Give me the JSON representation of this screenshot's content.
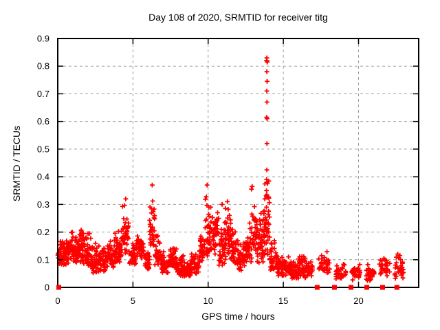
{
  "chart_data": {
    "type": "scatter",
    "title": "Day 108 of 2020, SRMTID for receiver titg",
    "xlabel": "GPS time / hours",
    "ylabel": "SRMTID / TECUs",
    "xlim": [
      0,
      24
    ],
    "ylim": [
      0,
      0.9
    ],
    "grid": true,
    "legend": "none",
    "marker": "plus",
    "seed": 7,
    "colors": {
      "marker": "#ff0000",
      "grid": "#9c9c9c",
      "border": "#000000",
      "background": "#ffffff"
    },
    "xticks": [
      {
        "v": 0,
        "label": "0"
      },
      {
        "v": 5,
        "label": "5"
      },
      {
        "v": 10,
        "label": "10"
      },
      {
        "v": 15,
        "label": "15"
      },
      {
        "v": 20,
        "label": "20"
      }
    ],
    "yticks": [
      {
        "v": 0.0,
        "label": "0"
      },
      {
        "v": 0.1,
        "label": "0.1"
      },
      {
        "v": 0.2,
        "label": "0.2"
      },
      {
        "v": 0.3,
        "label": "0.3"
      },
      {
        "v": 0.4,
        "label": "0.4"
      },
      {
        "v": 0.5,
        "label": "0.5"
      },
      {
        "v": 0.6,
        "label": "0.6"
      },
      {
        "v": 0.7,
        "label": "0.7"
      },
      {
        "v": 0.8,
        "label": "0.8"
      },
      {
        "v": 0.9,
        "label": "0.9"
      }
    ],
    "band_segments": [
      [
        0.0,
        0.3,
        28,
        0.08,
        0.17
      ],
      [
        0.3,
        0.8,
        48,
        0.08,
        0.18
      ],
      [
        0.8,
        1.3,
        52,
        0.09,
        0.21
      ],
      [
        1.3,
        1.8,
        50,
        0.08,
        0.22
      ],
      [
        1.8,
        2.3,
        46,
        0.07,
        0.2
      ],
      [
        2.3,
        2.8,
        40,
        0.05,
        0.17
      ],
      [
        2.8,
        3.3,
        40,
        0.05,
        0.16
      ],
      [
        3.3,
        3.8,
        44,
        0.07,
        0.19
      ],
      [
        3.8,
        4.3,
        46,
        0.09,
        0.22
      ],
      [
        4.3,
        4.75,
        42,
        0.11,
        0.32
      ],
      [
        4.75,
        5.2,
        30,
        0.08,
        0.18
      ],
      [
        5.2,
        5.8,
        42,
        0.1,
        0.21
      ],
      [
        5.8,
        6.1,
        24,
        0.06,
        0.15
      ],
      [
        6.1,
        6.45,
        32,
        0.14,
        0.37
      ],
      [
        6.45,
        6.9,
        30,
        0.08,
        0.2
      ],
      [
        6.9,
        7.4,
        40,
        0.05,
        0.13
      ],
      [
        7.4,
        7.9,
        44,
        0.06,
        0.16
      ],
      [
        7.9,
        8.4,
        46,
        0.04,
        0.12
      ],
      [
        8.4,
        8.9,
        44,
        0.04,
        0.11
      ],
      [
        8.9,
        9.4,
        40,
        0.05,
        0.14
      ],
      [
        9.4,
        9.8,
        36,
        0.08,
        0.22
      ],
      [
        9.8,
        10.15,
        36,
        0.1,
        0.36
      ],
      [
        10.15,
        10.7,
        46,
        0.12,
        0.32
      ],
      [
        10.7,
        11.1,
        38,
        0.08,
        0.24
      ],
      [
        11.1,
        11.5,
        40,
        0.1,
        0.31
      ],
      [
        11.5,
        12.0,
        44,
        0.08,
        0.22
      ],
      [
        12.0,
        12.5,
        40,
        0.06,
        0.18
      ],
      [
        12.5,
        12.9,
        34,
        0.08,
        0.25
      ],
      [
        12.9,
        13.25,
        34,
        0.1,
        0.37
      ],
      [
        13.25,
        13.7,
        40,
        0.08,
        0.3
      ],
      [
        13.7,
        14.1,
        46,
        0.1,
        0.4
      ],
      [
        14.1,
        14.6,
        44,
        0.06,
        0.18
      ],
      [
        14.6,
        15.1,
        44,
        0.04,
        0.13
      ],
      [
        15.1,
        15.55,
        36,
        0.04,
        0.12
      ],
      [
        15.55,
        16.0,
        38,
        0.03,
        0.1
      ],
      [
        16.0,
        16.6,
        44,
        0.03,
        0.14
      ],
      [
        16.6,
        16.95,
        22,
        0.04,
        0.1
      ],
      [
        17.35,
        18.1,
        34,
        0.05,
        0.14
      ],
      [
        18.5,
        19.2,
        30,
        0.03,
        0.09
      ],
      [
        19.55,
        20.1,
        30,
        0.025,
        0.09
      ],
      [
        20.5,
        21.1,
        30,
        0.02,
        0.1
      ],
      [
        21.4,
        22.1,
        30,
        0.04,
        0.12
      ],
      [
        22.4,
        23.0,
        30,
        0.03,
        0.13
      ]
    ],
    "spike_points": [
      [
        13.88,
        0.82
      ],
      [
        13.91,
        0.82
      ],
      [
        13.93,
        0.815
      ],
      [
        13.9,
        0.83
      ],
      [
        13.9,
        0.78
      ],
      [
        13.92,
        0.745
      ],
      [
        13.9,
        0.71
      ],
      [
        13.91,
        0.67
      ],
      [
        13.89,
        0.615
      ],
      [
        13.92,
        0.61
      ],
      [
        13.91,
        0.52
      ],
      [
        13.9,
        0.425
      ],
      [
        13.89,
        0.39
      ],
      [
        13.92,
        0.38
      ],
      [
        13.94,
        0.375
      ],
      [
        13.88,
        0.35
      ],
      [
        13.91,
        0.335
      ],
      [
        13.93,
        0.325
      ],
      [
        12.93,
        0.365
      ],
      [
        12.88,
        0.355
      ],
      [
        9.93,
        0.37
      ],
      [
        6.28,
        0.37
      ],
      [
        4.52,
        0.32
      ],
      [
        10.93,
        0.3
      ],
      [
        11.28,
        0.31
      ]
    ],
    "zero_points": [
      0.07,
      17.25,
      18.4,
      19.5,
      20.55,
      21.6,
      22.55
    ]
  }
}
